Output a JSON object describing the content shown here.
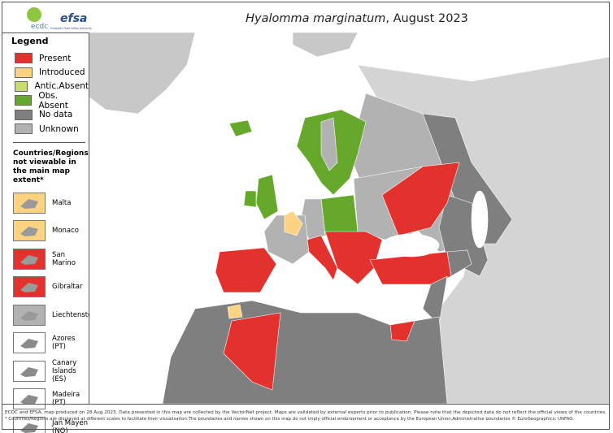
{
  "header": {
    "logos": [
      "ecdc",
      "efsa"
    ],
    "logo_subtitle": "European Food Safety Authority",
    "title_italic": "Hyalomma marginatum",
    "title_rest": ", August 2023"
  },
  "legend": {
    "title": "Legend",
    "items": [
      {
        "label": "Present",
        "color": "#e3312d"
      },
      {
        "label": "Introduced",
        "color": "#fcd383"
      },
      {
        "label": "Antic.Absent",
        "color": "#c8dc6b"
      },
      {
        "label": "Obs. Absent",
        "color": "#66a82b"
      },
      {
        "label": "No data",
        "color": "#7f7f7f"
      },
      {
        "label": "Unknown",
        "color": "#b2b2b2"
      }
    ]
  },
  "insets": {
    "title": "Countries/Regions not viewable in the main map extent*",
    "items": [
      "Malta",
      "Monaco",
      "San Marino",
      "Gibraltar",
      "Liechtenstein",
      "Azores (PT)",
      "Canary Islands (ES)",
      "Madeira (PT)",
      "Jan Mayen (NO)"
    ]
  },
  "footer": {
    "lines": [
      "ECDC and EFSA, map produced on 28 Aug 2023. Data presented in this map are collected by the VectorNet project. Maps are validated by external experts prior to publication. Please note that the depicted data do not reflect the official views of the countries.",
      "* Countries/Regions are displayed at different scales to facilitate their visualisation.The boundaries and names shown on this map do not imply official endorsement or acceptance by the European Union.Administrative boundaries © EuroGeographics; UNFAO."
    ]
  }
}
